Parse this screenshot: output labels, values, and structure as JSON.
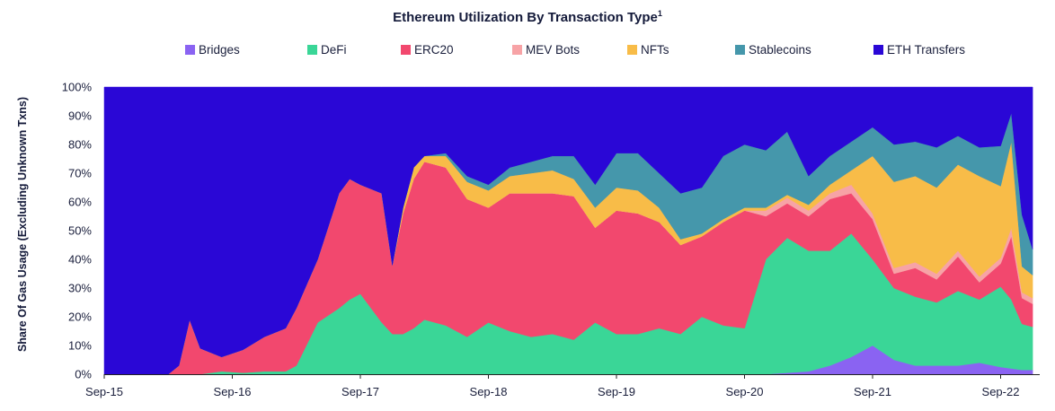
{
  "chart_data": {
    "type": "area",
    "title": "Ethereum Utilization By Transaction Type",
    "title_footnote": "1",
    "ylabel": "Share Of Gas Usage (Excluding Unknown Txns)",
    "xlabel": "",
    "y_ticks": [
      "0%",
      "10%",
      "20%",
      "30%",
      "40%",
      "50%",
      "60%",
      "70%",
      "80%",
      "90%",
      "100%"
    ],
    "x_ticks": [
      "Sep-15",
      "Sep-16",
      "Sep-17",
      "Sep-18",
      "Sep-19",
      "Sep-20",
      "Sep-21",
      "Sep-22"
    ],
    "ylim": [
      0,
      100
    ],
    "stacked": true,
    "legend_position": "top",
    "x": [
      "2015-09",
      "2015-12",
      "2016-03",
      "2016-04",
      "2016-05",
      "2016-06",
      "2016-08",
      "2016-10",
      "2016-12",
      "2017-02",
      "2017-03",
      "2017-05",
      "2017-07",
      "2017-08",
      "2017-09",
      "2017-11",
      "2017-12",
      "2018-01",
      "2018-02",
      "2018-03",
      "2018-05",
      "2018-07",
      "2018-09",
      "2018-11",
      "2019-01",
      "2019-03",
      "2019-05",
      "2019-07",
      "2019-09",
      "2019-11",
      "2020-01",
      "2020-03",
      "2020-05",
      "2020-07",
      "2020-09",
      "2020-11",
      "2021-01",
      "2021-03",
      "2021-05",
      "2021-07",
      "2021-09",
      "2021-11",
      "2022-01",
      "2022-03",
      "2022-05",
      "2022-07",
      "2022-09",
      "2022-10",
      "2022-11",
      "2022-12"
    ],
    "series": [
      {
        "name": "Bridges",
        "color": "#8a63f2",
        "values": [
          0,
          0,
          0,
          0,
          0,
          0,
          0,
          0,
          0,
          0,
          0,
          0,
          0,
          0,
          0,
          0,
          0,
          0,
          0,
          0,
          0,
          0,
          0,
          0,
          0,
          0,
          0,
          0,
          0,
          0,
          0,
          0,
          0,
          0,
          0,
          0,
          0.5,
          1,
          3,
          6,
          10,
          5,
          3,
          3,
          3,
          4,
          2.5,
          2,
          1.5,
          1.5
        ]
      },
      {
        "name": "DeFi",
        "color": "#3ad697",
        "values": [
          0,
          0,
          0,
          0,
          0,
          0,
          1,
          0.5,
          1,
          1,
          3,
          18,
          23,
          26,
          28,
          18,
          14,
          14,
          16,
          19,
          17,
          13,
          18,
          15,
          13,
          14,
          12,
          18,
          14,
          14,
          16,
          14,
          20,
          17,
          16,
          40,
          47,
          42,
          40,
          43,
          30,
          25,
          24,
          22,
          26,
          22,
          28,
          24,
          16,
          15
        ]
      },
      {
        "name": "ERC20",
        "color": "#f2486e",
        "values": [
          0,
          0,
          0,
          3,
          19,
          9,
          5,
          8,
          12,
          15,
          20,
          22,
          40,
          42,
          38,
          45,
          24,
          42,
          52,
          55,
          55,
          48,
          40,
          48,
          50,
          49,
          50,
          33,
          43,
          42,
          37,
          31,
          28,
          36,
          41,
          15,
          12,
          12,
          18,
          14,
          14,
          5,
          10,
          8,
          12,
          6,
          8,
          22,
          9,
          8
        ]
      },
      {
        "name": "MEV Bots",
        "color": "#f7a3a6",
        "values": [
          0,
          0,
          0,
          0,
          0,
          0,
          0,
          0,
          0,
          0,
          0,
          0,
          0,
          0,
          0,
          0,
          0,
          0,
          0,
          0,
          0,
          0,
          0,
          0,
          0,
          0,
          0,
          0,
          0,
          0,
          0,
          0,
          0,
          0,
          0,
          2,
          2,
          2,
          2,
          3,
          2,
          2,
          2,
          2,
          2,
          2,
          2,
          3,
          2,
          2
        ]
      },
      {
        "name": "NFTs",
        "color": "#f8bc48",
        "values": [
          0,
          0,
          0,
          0,
          0,
          0,
          0,
          0,
          0,
          0,
          0,
          0,
          0,
          0,
          0,
          0,
          0,
          2,
          4,
          2,
          4,
          6,
          6,
          6,
          7,
          8,
          6,
          7,
          8,
          8,
          5,
          2,
          1,
          1,
          1,
          1,
          1,
          2,
          3,
          5,
          20,
          30,
          30,
          30,
          30,
          35,
          25,
          30,
          9,
          8
        ]
      },
      {
        "name": "Stablecoins",
        "color": "#4597ab",
        "values": [
          0,
          0,
          0,
          0,
          0,
          0,
          0,
          0,
          0,
          0,
          0,
          0,
          0,
          0,
          0,
          0,
          0,
          0,
          0,
          0,
          1,
          2,
          2,
          3,
          4,
          5,
          8,
          8,
          12,
          13,
          12,
          16,
          16,
          22,
          22,
          20,
          22,
          10,
          10,
          10,
          10,
          13,
          12,
          14,
          10,
          10,
          14,
          10,
          18,
          9
        ]
      },
      {
        "name": "ETH Transfers",
        "color": "#2a07d6",
        "values": [
          100,
          100,
          100,
          97,
          81,
          91,
          94,
          91.5,
          87,
          84,
          77,
          60,
          37,
          32,
          34,
          37,
          62,
          42,
          28,
          24,
          23,
          31,
          34,
          28,
          26,
          24,
          24,
          34,
          23,
          23,
          30,
          37,
          35,
          24,
          20,
          22,
          15.5,
          31,
          24,
          19,
          14,
          20,
          19,
          21,
          17,
          21,
          20.5,
          9,
          44.5,
          56.5
        ]
      }
    ]
  }
}
